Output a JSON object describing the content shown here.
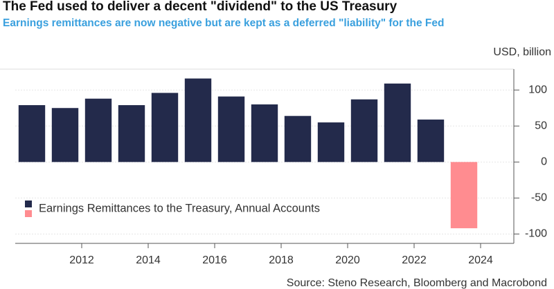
{
  "chart_data": {
    "type": "bar",
    "title": "The Fed used to deliver a decent \"dividend\" to the US Treasury",
    "subtitle": "Earnings remittances are now negative but are kept as a deferred \"liability\" for the Fed",
    "y_axis_label": "USD, billion",
    "source": "Source: Steno Research, Bloomberg and Macrobond",
    "x": [
      2010,
      2011,
      2012,
      2013,
      2014,
      2015,
      2016,
      2017,
      2018,
      2019,
      2020,
      2021,
      2022,
      2023
    ],
    "series": [
      {
        "name": "Earnings Remittances to the Treasury, Annual Accounts",
        "color": "#232a4b",
        "negative_color": "#ff8c90",
        "values": [
          79,
          75,
          88,
          79,
          96,
          116,
          91,
          80,
          64,
          55,
          87,
          109,
          59,
          -92
        ]
      }
    ],
    "xlim": [
      2010,
      2025
    ],
    "xticks": [
      2012,
      2014,
      2016,
      2018,
      2020,
      2022,
      2024
    ],
    "ylim": [
      -113,
      129
    ],
    "yticks": [
      -100,
      -50,
      0,
      50,
      100
    ],
    "grid": true,
    "legend": "lower left"
  }
}
